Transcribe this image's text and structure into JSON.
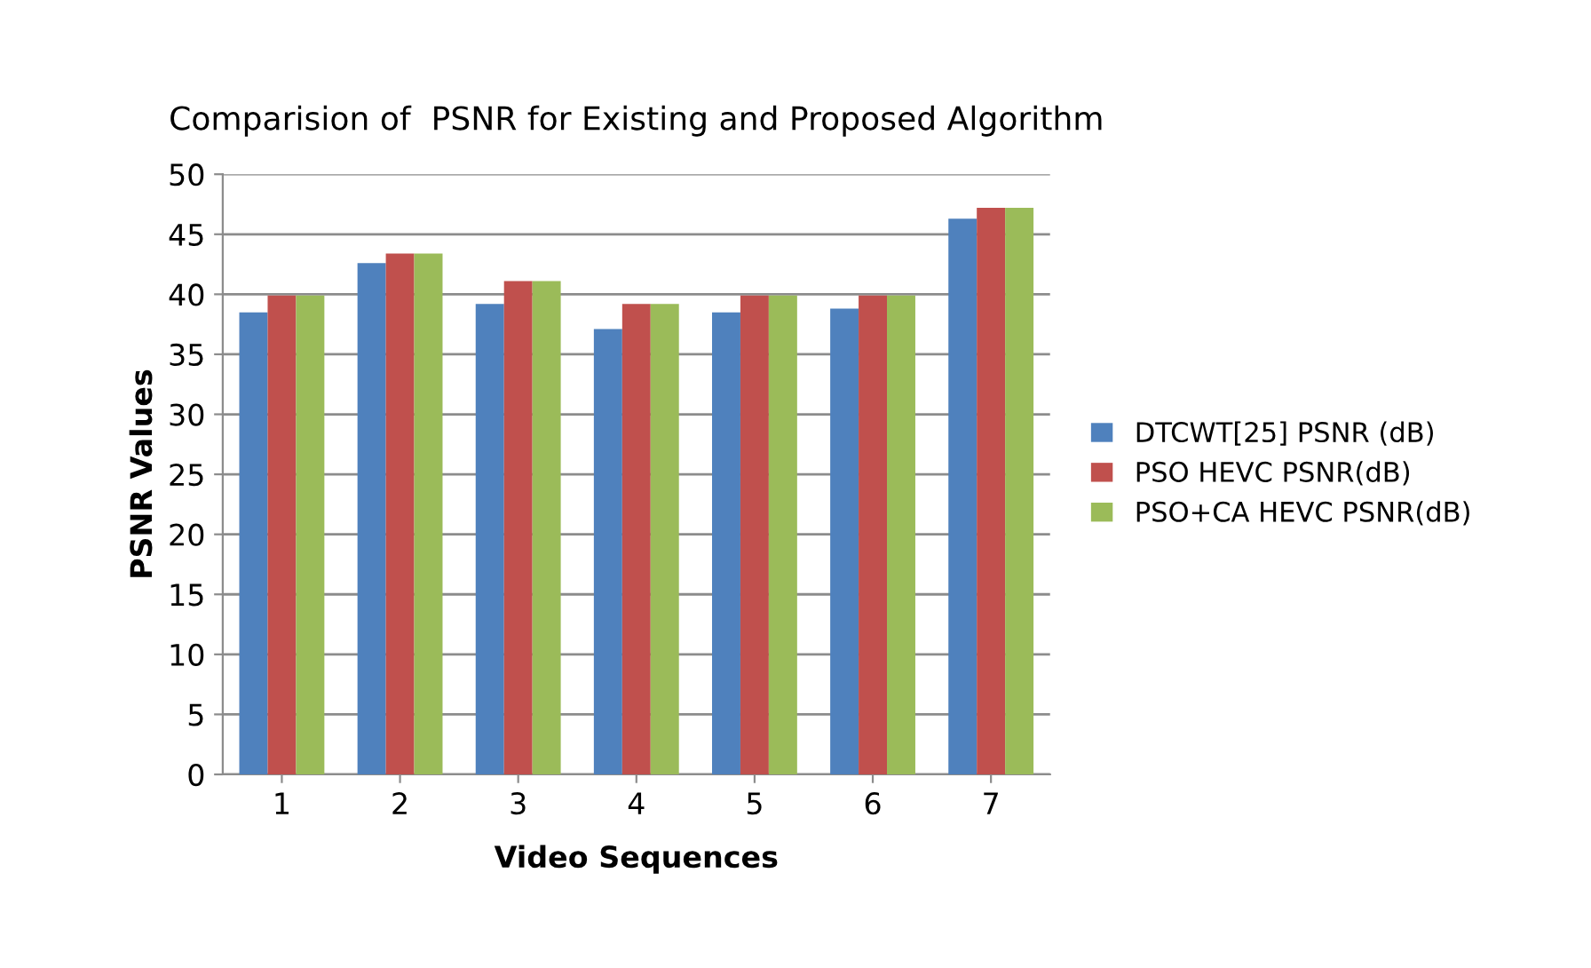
{
  "chart_data": {
    "type": "bar",
    "title": "Comparision of  PSNR for Existing and Proposed Algorithm",
    "xlabel": "Video Sequences",
    "ylabel": "PSNR Values",
    "categories": [
      "1",
      "2",
      "3",
      "4",
      "5",
      "6",
      "7"
    ],
    "series": [
      {
        "name": "DTCWT[25] PSNR (dB)",
        "color": "#4f81bd",
        "values": [
          38.5,
          42.6,
          39.2,
          37.1,
          38.5,
          38.8,
          46.3
        ]
      },
      {
        "name": "PSO HEVC PSNR(dB)",
        "color": "#c0504d",
        "values": [
          39.9,
          43.4,
          41.1,
          39.2,
          39.9,
          39.9,
          47.2
        ]
      },
      {
        "name": "PSO+CA HEVC PSNR(dB)",
        "color": "#9bbb59",
        "values": [
          39.9,
          43.4,
          41.1,
          39.2,
          39.9,
          39.9,
          47.2
        ]
      }
    ],
    "ylim": [
      0,
      50
    ],
    "yticks": [
      0,
      5,
      10,
      15,
      20,
      25,
      30,
      35,
      40,
      45,
      50
    ],
    "grid": "y",
    "legend": "right"
  }
}
